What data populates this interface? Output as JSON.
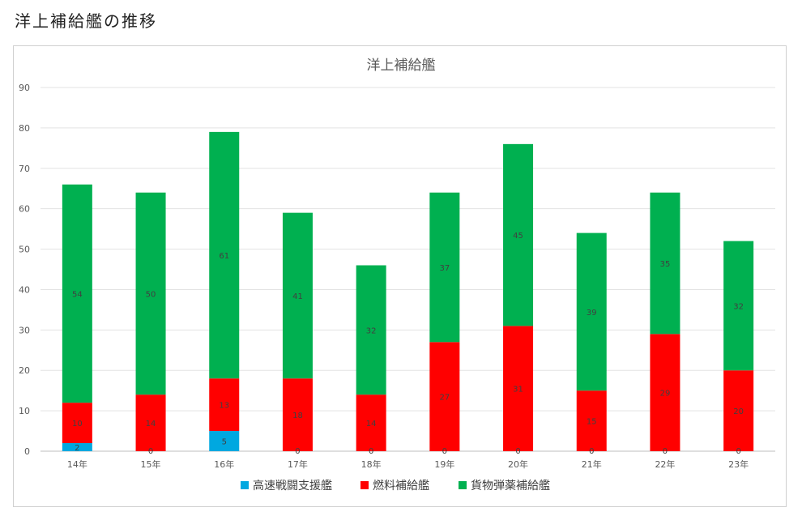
{
  "page": {
    "heading": "洋上補給艦の推移"
  },
  "chart_data": {
    "type": "bar",
    "stacked": true,
    "title": "洋上補給艦",
    "xlabel": "",
    "ylabel": "",
    "categories": [
      "14年",
      "15年",
      "16年",
      "17年",
      "18年",
      "19年",
      "20年",
      "21年",
      "22年",
      "23年"
    ],
    "ylim": [
      0,
      90
    ],
    "yticks": [
      0,
      10,
      20,
      30,
      40,
      50,
      60,
      70,
      80,
      90
    ],
    "grid": true,
    "legend_position": "bottom",
    "series": [
      {
        "name": "高速戦闘支援艦",
        "color": "#00a8e0",
        "values": [
          2,
          0,
          5,
          0,
          0,
          0,
          0,
          0,
          0,
          0
        ]
      },
      {
        "name": "燃料補給艦",
        "color": "#ff0000",
        "values": [
          10,
          14,
          13,
          18,
          14,
          27,
          31,
          15,
          29,
          20
        ]
      },
      {
        "name": "貨物弾薬補給艦",
        "color": "#00b050",
        "values": [
          54,
          50,
          61,
          41,
          32,
          37,
          45,
          39,
          35,
          32
        ]
      }
    ]
  }
}
